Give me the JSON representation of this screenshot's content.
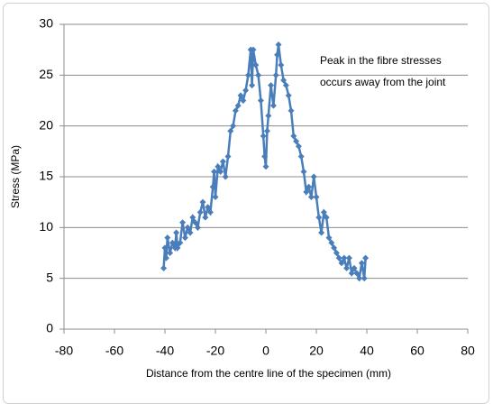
{
  "chart_data": {
    "type": "line",
    "y_label": "Stress (MPa)",
    "x_label": "Distance from the centre line of the specimen (mm)",
    "annotation": [
      "Peak in the fibre stresses",
      "occurs away from the joint"
    ],
    "xlim": [
      -80,
      80
    ],
    "xticks": [
      -80,
      -60,
      -40,
      -20,
      0,
      20,
      40,
      60,
      80
    ],
    "ylim": [
      0,
      30
    ],
    "yticks": [
      0,
      5,
      10,
      15,
      20,
      25,
      30
    ],
    "grid": true,
    "series": [
      {
        "color": "#4a7ebb",
        "x": [
          -40.5,
          -40,
          -39.5,
          -39,
          -38,
          -37,
          -36,
          -35.5,
          -35,
          -34,
          -33,
          -32,
          -31,
          -30,
          -29,
          -28,
          -27,
          -26,
          -25,
          -24,
          -23,
          -22,
          -21,
          -20.5,
          -20,
          -19,
          -18,
          -17,
          -16,
          -15,
          -14,
          -13,
          -12,
          -11,
          -10,
          -9,
          -8,
          -7,
          -6,
          -5.5,
          -5,
          -4,
          -3,
          -2,
          -1,
          -0.5,
          0,
          0.5,
          1,
          2,
          3,
          4,
          4.5,
          5,
          6,
          7,
          8,
          9,
          10,
          11,
          12,
          13,
          14,
          15,
          16,
          17,
          18,
          19,
          20,
          21,
          22,
          23,
          24,
          25,
          26,
          27,
          28,
          29,
          30,
          31,
          32,
          33,
          34,
          35,
          36,
          37,
          38,
          39,
          39.5
        ],
        "values": [
          6,
          8,
          7,
          9,
          7.5,
          8.5,
          8,
          9.5,
          8,
          8.5,
          10.5,
          9,
          10,
          9.5,
          11,
          10.5,
          10,
          11.5,
          12.5,
          11,
          12,
          11.5,
          14,
          15.5,
          13,
          16,
          15.5,
          16.5,
          15,
          17,
          19.5,
          20,
          21.5,
          22,
          23,
          22.5,
          23.5,
          25,
          27.5,
          24,
          27.5,
          26,
          25,
          22.5,
          19,
          17,
          16,
          19.5,
          21,
          24,
          22,
          25,
          27,
          28,
          26,
          24.5,
          24,
          23,
          21.5,
          19,
          18.5,
          18,
          17,
          15.5,
          13.5,
          14,
          13,
          15,
          13,
          11,
          9.5,
          11.5,
          11,
          9,
          8.5,
          8,
          7.5,
          7,
          6.5,
          7,
          6,
          7,
          5.5,
          6,
          5.5,
          5,
          6.5,
          5,
          7
        ]
      }
    ]
  }
}
